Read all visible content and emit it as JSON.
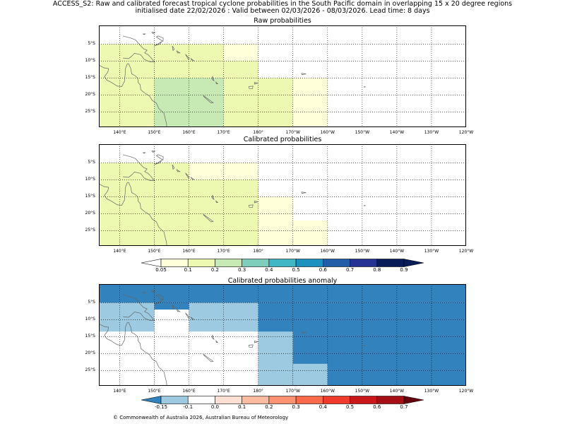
{
  "header": {
    "line1": "ACCESS_S2: Raw and calibrated forecast tropical cyclone probabilities in the South Pacific domain in overlapping 15 x 20 degree regions",
    "line2": "initialised date 22/02/2026 :  Valid between 02/03/2026 - 08/03/2026. Lead time: 8 days"
  },
  "axes": {
    "lon_labels": [
      "140°E",
      "150°E",
      "160°E",
      "170°E",
      "180°",
      "170°W",
      "160°W",
      "150°W",
      "140°W",
      "130°W",
      "120°W"
    ],
    "lat_labels": [
      "5°S",
      "10°S",
      "15°S",
      "20°S",
      "25°S"
    ]
  },
  "panels": [
    {
      "title": "Raw probabilities",
      "cells": [
        {
          "lon": [
            140,
            150
          ],
          "lat": [
            -5,
            -10
          ],
          "color": "#edf8b1"
        },
        {
          "lon": [
            150,
            170
          ],
          "lat": [
            -5,
            -10
          ],
          "color": "#edf8b1"
        },
        {
          "lon": [
            170,
            180
          ],
          "lat": [
            -5,
            -10
          ],
          "color": "#ffffd9"
        },
        {
          "lon": [
            134,
            150
          ],
          "lat": [
            -10,
            -15
          ],
          "color": "#edf8b1"
        },
        {
          "lon": [
            150,
            180
          ],
          "lat": [
            -10,
            -15
          ],
          "color": "#edf8b1"
        },
        {
          "lon": [
            134,
            150
          ],
          "lat": [
            -15,
            -30
          ],
          "color": "#edf8b1"
        },
        {
          "lon": [
            150,
            170
          ],
          "lat": [
            -15,
            -30
          ],
          "color": "#c7e9b4"
        },
        {
          "lon": [
            170,
            190
          ],
          "lat": [
            -15,
            -30
          ],
          "color": "#edf8b1"
        },
        {
          "lon": [
            190,
            200
          ],
          "lat": [
            -15,
            -30
          ],
          "color": "#ffffd9"
        },
        {
          "lon": [
            134,
            140
          ],
          "lat": [
            -5,
            -10
          ],
          "color": "#edf8b1"
        }
      ]
    },
    {
      "title": "Calibrated probabilities",
      "cells": [
        {
          "lon": [
            134,
            160
          ],
          "lat": [
            -5,
            -30
          ],
          "color": "#edf8b1"
        },
        {
          "lon": [
            160,
            180
          ],
          "lat": [
            -5,
            -10
          ],
          "color": "#ffffd9"
        },
        {
          "lon": [
            160,
            180
          ],
          "lat": [
            -10,
            -30
          ],
          "color": "#edf8b1"
        },
        {
          "lon": [
            180,
            190
          ],
          "lat": [
            -15,
            -30
          ],
          "color": "#ffffd9"
        },
        {
          "lon": [
            190,
            200
          ],
          "lat": [
            -22,
            -30
          ],
          "color": "#ffffd9"
        }
      ]
    },
    {
      "title": "Calibrated probabilities anomaly",
      "cells": [
        {
          "lon": [
            134,
            240
          ],
          "lat": [
            1,
            -5
          ],
          "color": "#3182bd"
        },
        {
          "lon": [
            180,
            240
          ],
          "lat": [
            -5,
            -30
          ],
          "color": "#3182bd"
        },
        {
          "lon": [
            134,
            150
          ],
          "lat": [
            -5,
            -13.5
          ],
          "color": "#9ecae1"
        },
        {
          "lon": [
            150,
            160
          ],
          "lat": [
            -5,
            -7
          ],
          "color": "#3182bd"
        },
        {
          "lon": [
            160,
            180
          ],
          "lat": [
            -5,
            -13.5
          ],
          "color": "#9ecae1"
        },
        {
          "lon": [
            180,
            190
          ],
          "lat": [
            -13.5,
            -30
          ],
          "color": "#9ecae1"
        },
        {
          "lon": [
            190,
            200
          ],
          "lat": [
            -23,
            -30
          ],
          "color": "#9ecae1"
        },
        {
          "lon": [
            134,
            136
          ],
          "lat": [
            -5,
            -13.5
          ],
          "color": "#9ecae1"
        }
      ]
    }
  ],
  "colorbar_probability": {
    "ticks": [
      "0.05",
      "0.1",
      "0.2",
      "0.3",
      "0.4",
      "0.5",
      "0.6",
      "0.7",
      "0.8",
      "0.9"
    ],
    "colors": [
      "#ffffff",
      "#ffffd9",
      "#edf8b1",
      "#c7e9b4",
      "#7fcdbb",
      "#41b6c4",
      "#1d91c0",
      "#225ea8",
      "#253494",
      "#081d58",
      "#081d58"
    ]
  },
  "colorbar_anomaly": {
    "ticks": [
      "-0.15",
      "-0.1",
      "0.0",
      "0.1",
      "0.2",
      "0.3",
      "0.4",
      "0.5",
      "0.6",
      "0.7"
    ],
    "colors": [
      "#3182bd",
      "#9ecae1",
      "#ffffff",
      "#fee0d2",
      "#fcbba1",
      "#fc9272",
      "#fb6a4a",
      "#ef3b2c",
      "#cb181d",
      "#a50f15",
      "#67000d"
    ]
  },
  "footer": {
    "copyright": "© Commonwealth of Australia 2026, Australian Bureau of Meteorology"
  }
}
